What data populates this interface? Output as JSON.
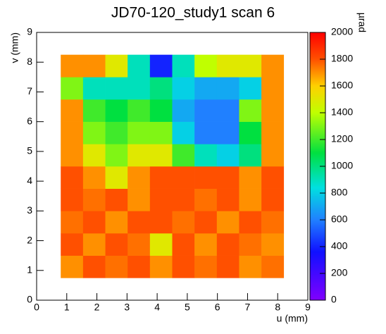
{
  "chart_data": {
    "type": "heatmap",
    "title": "JD70-120_study1 scan 6",
    "x_label": "u (mm)",
    "y_label": "v (mm)",
    "z_label": "µrad",
    "xlim": [
      0,
      9
    ],
    "xticks": [
      0,
      1,
      2,
      3,
      4,
      5,
      6,
      7,
      8,
      9
    ],
    "ylim": [
      0,
      9
    ],
    "yticks": [
      0,
      1,
      2,
      3,
      4,
      5,
      6,
      7,
      8,
      9
    ],
    "zlim": [
      0,
      2000
    ],
    "zticks": [
      0,
      200,
      400,
      600,
      800,
      1000,
      1200,
      1400,
      1600,
      1800,
      2000
    ],
    "x_bins": [
      0.8,
      1.54,
      2.28,
      3.02,
      3.76,
      4.5,
      5.24,
      5.98,
      6.72,
      7.46,
      8.2
    ],
    "y_bins": [
      0.75,
      1.5,
      2.25,
      3.0,
      3.75,
      4.5,
      5.25,
      6.0,
      6.75,
      7.5,
      8.25
    ],
    "z": [
      [
        1700,
        1800,
        1750,
        1800,
        1700,
        1800,
        1750,
        1800,
        1700,
        1750
      ],
      [
        1800,
        1700,
        1800,
        1750,
        1500,
        1800,
        1700,
        1800,
        1750,
        1700
      ],
      [
        1750,
        1800,
        1700,
        1800,
        1800,
        1750,
        1800,
        1700,
        1800,
        1750
      ],
      [
        1800,
        1750,
        1800,
        1700,
        1800,
        1800,
        1750,
        1800,
        1700,
        1800
      ],
      [
        1800,
        1700,
        1500,
        1700,
        1800,
        1800,
        1800,
        1800,
        1700,
        1800
      ],
      [
        1700,
        1500,
        1300,
        1500,
        1500,
        1200,
        900,
        800,
        1000,
        1700
      ],
      [
        1700,
        1300,
        1200,
        1300,
        1300,
        800,
        600,
        600,
        1100,
        1700
      ],
      [
        1700,
        1200,
        1100,
        1200,
        1100,
        700,
        600,
        600,
        1300,
        1700
      ],
      [
        1300,
        900,
        900,
        900,
        1000,
        800,
        700,
        700,
        800,
        1700
      ],
      [
        1700,
        1700,
        1500,
        900,
        400,
        900,
        1400,
        1500,
        1500,
        1700
      ]
    ]
  }
}
